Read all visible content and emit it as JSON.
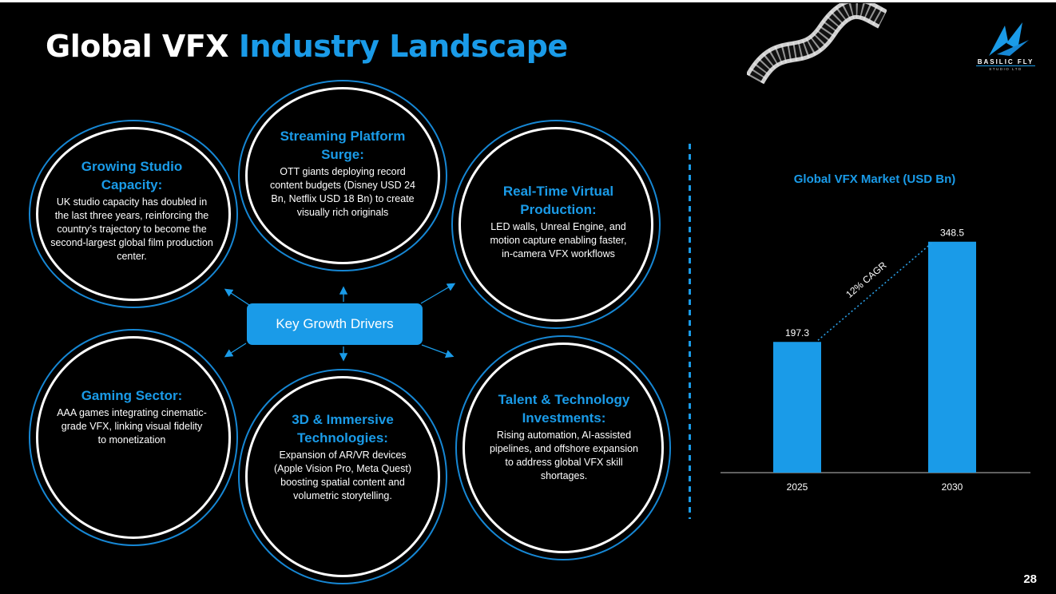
{
  "title": {
    "part1": "Global VFX",
    "part2": "Industry Landscape"
  },
  "logo": {
    "name": "BASILIC FLY",
    "sub": "STUDIO LTD"
  },
  "page_number": "28",
  "center_label": "Key Growth Drivers",
  "drivers": [
    {
      "heading": "Growing Studio Capacity:",
      "body": "UK studio capacity has doubled in the last three years, reinforcing the country’s trajectory to become the second-largest global film production center."
    },
    {
      "heading": "Streaming Platform Surge:",
      "body": "OTT giants deploying record content budgets (Disney USD 24 Bn, Netflix USD 18 Bn) to create visually rich originals"
    },
    {
      "heading": "Real-Time Virtual Production:",
      "body": "LED walls, Unreal Engine, and motion capture enabling faster, in-camera VFX workflows"
    },
    {
      "heading": "Gaming Sector:",
      "body": "AAA games integrating cinematic-grade VFX, linking visual fidelity to monetization"
    },
    {
      "heading": "3D & Immersive Technologies:",
      "body": "Expansion of AR/VR devices (Apple Vision Pro, Meta Quest) boosting spatial content and volumetric storytelling."
    },
    {
      "heading": "Talent & Technology Investments:",
      "body": "Rising automation, AI-assisted pipelines, and offshore expansion to address global VFX skill shortages."
    }
  ],
  "colors": {
    "accent": "#1a9be8",
    "background": "#000000",
    "text": "#ffffff"
  },
  "chart_data": {
    "type": "bar",
    "title": "Global VFX Market (USD Bn)",
    "categories": [
      "2025",
      "2030"
    ],
    "values": [
      197.3,
      348.5
    ],
    "value_labels": [
      "197.3",
      "348.5"
    ],
    "annotation": "12% CAGR",
    "ylim": [
      0,
      400
    ],
    "grid": false,
    "legend": "none"
  }
}
